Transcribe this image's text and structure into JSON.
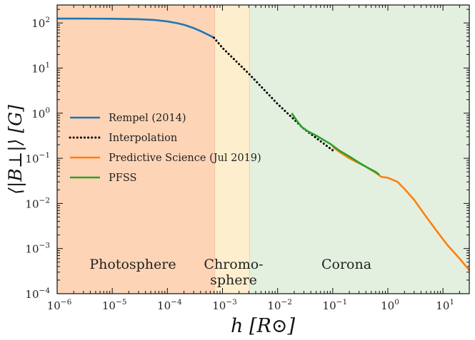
{
  "chart_data": {
    "type": "line",
    "xscale": "log",
    "yscale": "log",
    "xlim": [
      1e-06,
      30
    ],
    "ylim": [
      0.0001,
      250
    ],
    "xlabel": "h [R⊙]",
    "ylabel": "⟨|B⊥|⟩ [G]",
    "x_ticks": [
      {
        "value": 1e-06,
        "base": "10",
        "exp": "−6"
      },
      {
        "value": 1e-05,
        "base": "10",
        "exp": "−5"
      },
      {
        "value": 0.0001,
        "base": "10",
        "exp": "−4"
      },
      {
        "value": 0.001,
        "base": "10",
        "exp": "−3"
      },
      {
        "value": 0.01,
        "base": "10",
        "exp": "−2"
      },
      {
        "value": 0.1,
        "base": "10",
        "exp": "−1"
      },
      {
        "value": 1,
        "base": "10",
        "exp": "0"
      },
      {
        "value": 10,
        "base": "10",
        "exp": "1"
      }
    ],
    "y_ticks": [
      {
        "value": 0.0001,
        "base": "10",
        "exp": "−4"
      },
      {
        "value": 0.001,
        "base": "10",
        "exp": "−3"
      },
      {
        "value": 0.01,
        "base": "10",
        "exp": "−2"
      },
      {
        "value": 0.1,
        "base": "10",
        "exp": "−1"
      },
      {
        "value": 1,
        "base": "10",
        "exp": "0"
      },
      {
        "value": 10,
        "base": "10",
        "exp": "1"
      },
      {
        "value": 100,
        "base": "10",
        "exp": "2"
      }
    ],
    "regions": [
      {
        "name": "Photosphere",
        "label_lines": [
          "Photosphere"
        ],
        "x_range": [
          1e-06,
          0.00072
        ],
        "color": "#fdd4b6"
      },
      {
        "name": "Chromosphere",
        "label_lines": [
          "Chromo-",
          "sphere"
        ],
        "x_range": [
          0.00072,
          0.0031
        ],
        "color": "#fdeecd"
      },
      {
        "name": "Corona",
        "label_lines": [
          "Corona"
        ],
        "x_range": [
          0.0031,
          30
        ],
        "color": "#e3f0e0"
      }
    ],
    "legend": {
      "placement": "center-left"
    },
    "series": [
      {
        "name": "Rempel (2014)",
        "color": "#1f77b4",
        "style": "solid",
        "x": [
          1e-06,
          3e-06,
          1e-05,
          3e-05,
          6e-05,
          0.0001,
          0.00015,
          0.0002,
          0.0003,
          0.0004,
          0.0005,
          0.0006,
          0.0007
        ],
        "y": [
          125,
          125,
          124,
          121,
          116,
          108,
          99,
          91,
          77,
          66,
          58,
          52,
          47
        ]
      },
      {
        "name": "Interpolation",
        "color": "#000000",
        "style": "dotted",
        "x": [
          0.0007,
          0.001,
          0.003,
          0.01,
          0.03,
          0.1
        ],
        "y": [
          47,
          28,
          7.5,
          1.6,
          0.45,
          0.15
        ]
      },
      {
        "name": "Predictive Science (Jul 2019)",
        "color": "#ff7f0e",
        "style": "solid",
        "x": [
          0.1,
          0.13,
          0.2,
          0.3,
          0.4,
          0.5,
          0.65,
          0.75,
          1.0,
          1.5,
          2,
          3,
          5,
          8,
          12,
          20,
          30
        ],
        "y": [
          0.18,
          0.14,
          0.1,
          0.078,
          0.065,
          0.055,
          0.045,
          0.039,
          0.037,
          0.03,
          0.021,
          0.012,
          0.005,
          0.0023,
          0.0012,
          0.0006,
          0.00033
        ]
      },
      {
        "name": "PFSS",
        "color": "#2ca02c",
        "style": "solid",
        "x": [
          0.018,
          0.022,
          0.027,
          0.035,
          0.05,
          0.07,
          0.09,
          0.1,
          0.13,
          0.2,
          0.3,
          0.45,
          0.6,
          0.7
        ],
        "y": [
          1.0,
          0.7,
          0.5,
          0.4,
          0.32,
          0.25,
          0.21,
          0.19,
          0.15,
          0.11,
          0.08,
          0.06,
          0.05,
          0.043
        ]
      }
    ]
  }
}
